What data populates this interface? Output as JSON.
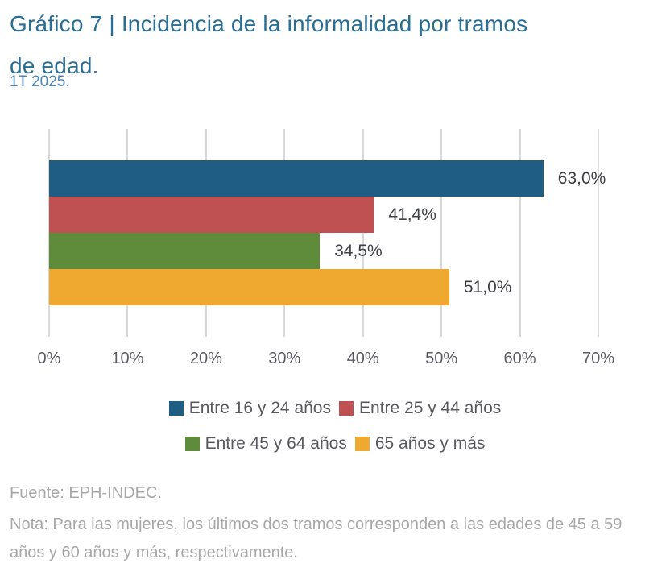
{
  "header": {
    "title_line1": "Gráfico 7 | Incidencia de la informalidad por tramos",
    "title_line2": "de edad.",
    "subtitle": "1T 2025."
  },
  "chart_data": {
    "type": "bar",
    "orientation": "horizontal",
    "title": "Gráfico 7 | Incidencia de la informalidad por tramos de edad.",
    "subtitle": "1T 2025.",
    "categories": [
      "Entre 16 y 24 años",
      "Entre 25 y 44 años",
      "Entre 45 y 64 años",
      "65 años y más"
    ],
    "values": [
      63.0,
      41.4,
      34.5,
      51.0
    ],
    "value_labels": [
      "63,0%",
      "41,4%",
      "34,5%",
      "51,0%"
    ],
    "bar_colors": [
      "#1f5d84",
      "#c05152",
      "#5f8c3b",
      "#f0a930"
    ],
    "xlim": [
      0,
      70
    ],
    "x_ticks": [
      "0%",
      "10%",
      "20%",
      "30%",
      "40%",
      "50%",
      "60%",
      "70%"
    ],
    "grid": "vertical-only",
    "gridline_color": "#d9d9d9",
    "legend_position": "bottom"
  },
  "legend": {
    "rows": [
      [
        {
          "label": "Entre 16 y 24 años",
          "color": "#1f5d84"
        },
        {
          "label": "Entre 25 y 44 años",
          "color": "#c05152"
        }
      ],
      [
        {
          "label": "Entre 45 y 64 años",
          "color": "#5f8c3b"
        },
        {
          "label": "65 años y más",
          "color": "#f0a930"
        }
      ]
    ]
  },
  "footer": {
    "source": "Fuente: EPH-INDEC.",
    "note": "Nota: Para las mujeres, los últimos dos tramos corresponden a las edades de 45 a 59 años y 60 años y más, respectivamente."
  },
  "colors": {
    "title": "#2a6e94",
    "subtitle": "#4a86b9",
    "tick_label": "#5b5c64",
    "value_label": "#3f4045",
    "legend_text": "#595a5e",
    "footer_text": "#a8a8aa"
  }
}
